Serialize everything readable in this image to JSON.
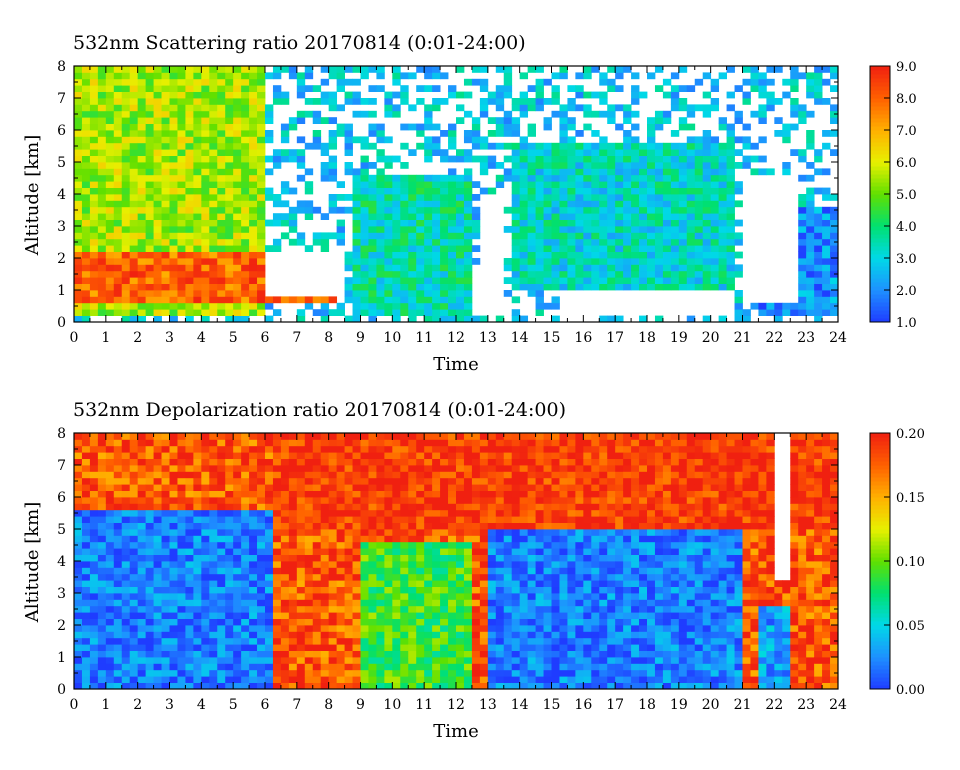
{
  "chart_data": [
    {
      "type": "heatmap",
      "title": "532nm Scattering ratio  20170814 (0:01-24:00)",
      "xlabel": "Time",
      "ylabel": "Altitude [km]",
      "xlim": [
        0,
        24
      ],
      "ylim": [
        0,
        8
      ],
      "x_ticks": [
        "0",
        "1",
        "2",
        "3",
        "4",
        "5",
        "6",
        "7",
        "8",
        "9",
        "10",
        "11",
        "12",
        "13",
        "14",
        "15",
        "16",
        "17",
        "18",
        "19",
        "20",
        "21",
        "22",
        "23",
        "24"
      ],
      "y_ticks": [
        "0",
        "1",
        "2",
        "3",
        "4",
        "5",
        "6",
        "7",
        "8"
      ],
      "colorbar": {
        "min": 1.0,
        "max": 9.0,
        "ticks": [
          "1.0",
          "2.0",
          "3.0",
          "4.0",
          "5.0",
          "6.0",
          "7.0",
          "8.0",
          "9.0"
        ],
        "colors": [
          "#1f3cff",
          "#1e90ff",
          "#00d8e8",
          "#00e070",
          "#60e000",
          "#e8f000",
          "#ffb000",
          "#ff6000",
          "#f02010"
        ]
      },
      "cloud_features": [
        {
          "t0": 0,
          "t1": 6,
          "base_km": 0.3,
          "top_km": 8,
          "level": 5.5
        },
        {
          "t0": 0,
          "t1": 8.2,
          "base_km": 0.7,
          "top_km": 2.2,
          "level": 8.0
        },
        {
          "t0": 8.8,
          "t1": 12.4,
          "base_km": 0.3,
          "top_km": 4.5,
          "level": 3.5
        },
        {
          "t0": 13.8,
          "t1": 20.8,
          "base_km": 1.0,
          "top_km": 5.5,
          "level": 3.2
        },
        {
          "t0": 21.5,
          "t1": 24,
          "base_km": 0.3,
          "top_km": 3.5,
          "level": 2.0
        }
      ],
      "missing_regions": [
        {
          "t0": 6.0,
          "t1": 8.5,
          "base_km": 0.8,
          "top_km": 2.3
        },
        {
          "t0": 12.8,
          "t1": 13.6,
          "base_km": 0.3,
          "top_km": 4.0
        },
        {
          "t0": 15.2,
          "t1": 20.8,
          "base_km": 0.3,
          "top_km": 1.0
        },
        {
          "t0": 21.0,
          "t1": 22.8,
          "base_km": 0.6,
          "top_km": 4.5
        }
      ]
    },
    {
      "type": "heatmap",
      "title": "532nm Depolarization ratio  20170814 (0:01-24:00)",
      "xlabel": "Time",
      "ylabel": "Altitude [km]",
      "xlim": [
        0,
        24
      ],
      "ylim": [
        0,
        8
      ],
      "x_ticks": [
        "0",
        "1",
        "2",
        "3",
        "4",
        "5",
        "6",
        "7",
        "8",
        "9",
        "10",
        "11",
        "12",
        "13",
        "14",
        "15",
        "16",
        "17",
        "18",
        "19",
        "20",
        "21",
        "22",
        "23",
        "24"
      ],
      "y_ticks": [
        "0",
        "1",
        "2",
        "3",
        "4",
        "5",
        "6",
        "7",
        "8"
      ],
      "colorbar": {
        "min": 0.0,
        "max": 0.2,
        "ticks": [
          "0.00",
          "0.05",
          "0.10",
          "0.15",
          "0.20"
        ],
        "colors": [
          "#1f3cff",
          "#1e90ff",
          "#00d8e8",
          "#00e070",
          "#60e000",
          "#e8f000",
          "#ffb000",
          "#ff6000",
          "#f02010"
        ]
      },
      "cloud_features": [
        {
          "t0": 0,
          "t1": 6.2,
          "base_km": 0,
          "top_km": 5.5,
          "level": 0.02
        },
        {
          "t0": 6.2,
          "t1": 24,
          "base_km": 5.0,
          "top_km": 8,
          "level": 0.19
        },
        {
          "t0": 9.0,
          "t1": 12.5,
          "base_km": 0,
          "top_km": 4.5,
          "level": 0.09
        },
        {
          "t0": 13.0,
          "t1": 21.0,
          "base_km": 0,
          "top_km": 5.0,
          "level": 0.02
        },
        {
          "t0": 21.5,
          "t1": 22.5,
          "base_km": 0,
          "top_km": 2.5,
          "level": 0.03
        }
      ],
      "missing_regions": [
        {
          "t0": 22.0,
          "t1": 22.6,
          "base_km": 3.5,
          "top_km": 8.0
        }
      ]
    }
  ]
}
